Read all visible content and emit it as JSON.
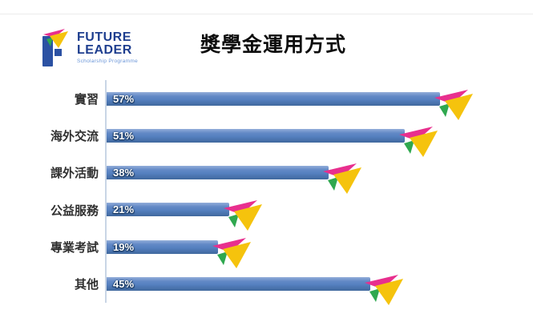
{
  "logo": {
    "line1": "FUTURE",
    "line2": "LEADER",
    "subtitle": "Scholarship Programme",
    "text_color": "#1e3e8f",
    "subtitle_color": "#6b96d8",
    "mark_blue": "#2b51a3"
  },
  "chart_data": {
    "type": "bar",
    "orientation": "horizontal",
    "title": "獎學金運用方式",
    "categories": [
      "實習",
      "海外交流",
      "課外活動",
      "公益服務",
      "專業考試",
      "其他"
    ],
    "values": [
      57,
      51,
      38,
      21,
      19,
      45
    ],
    "value_labels": [
      "57%",
      "51%",
      "38%",
      "21%",
      "19%",
      "45%"
    ],
    "xlim": [
      0,
      60
    ],
    "grid": false,
    "legend": false,
    "bar_color": "#5580c0",
    "axis_color": "#c9d5e5"
  },
  "icons": {
    "paper_plane": {
      "pink": "#e82f8e",
      "yellow": "#f5c30d",
      "green": "#2fa84f"
    }
  }
}
